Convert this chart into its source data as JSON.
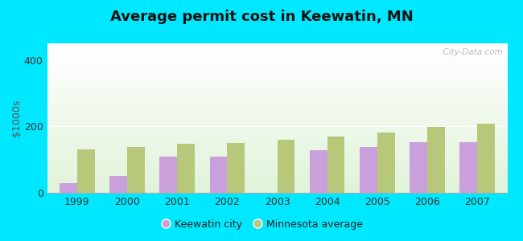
{
  "title": "Average permit cost in Keewatin, MN",
  "ylabel": "$1000s",
  "years": [
    1999,
    2000,
    2001,
    2002,
    2003,
    2004,
    2005,
    2006,
    2007
  ],
  "keewatin_values": [
    30,
    50,
    110,
    108,
    null,
    128,
    138,
    152,
    152
  ],
  "minnesota_values": [
    130,
    138,
    148,
    150,
    160,
    170,
    182,
    198,
    207
  ],
  "keewatin_color": "#c9a0dc",
  "minnesota_color": "#b8c87a",
  "bar_width": 0.35,
  "ylim": [
    0,
    450
  ],
  "yticks": [
    0,
    200,
    400
  ],
  "outer_bg": "#00e8ff",
  "title_fontsize": 13,
  "axis_label_fontsize": 9,
  "tick_fontsize": 9,
  "legend_fontsize": 9,
  "watermark": "  City-Data.com"
}
